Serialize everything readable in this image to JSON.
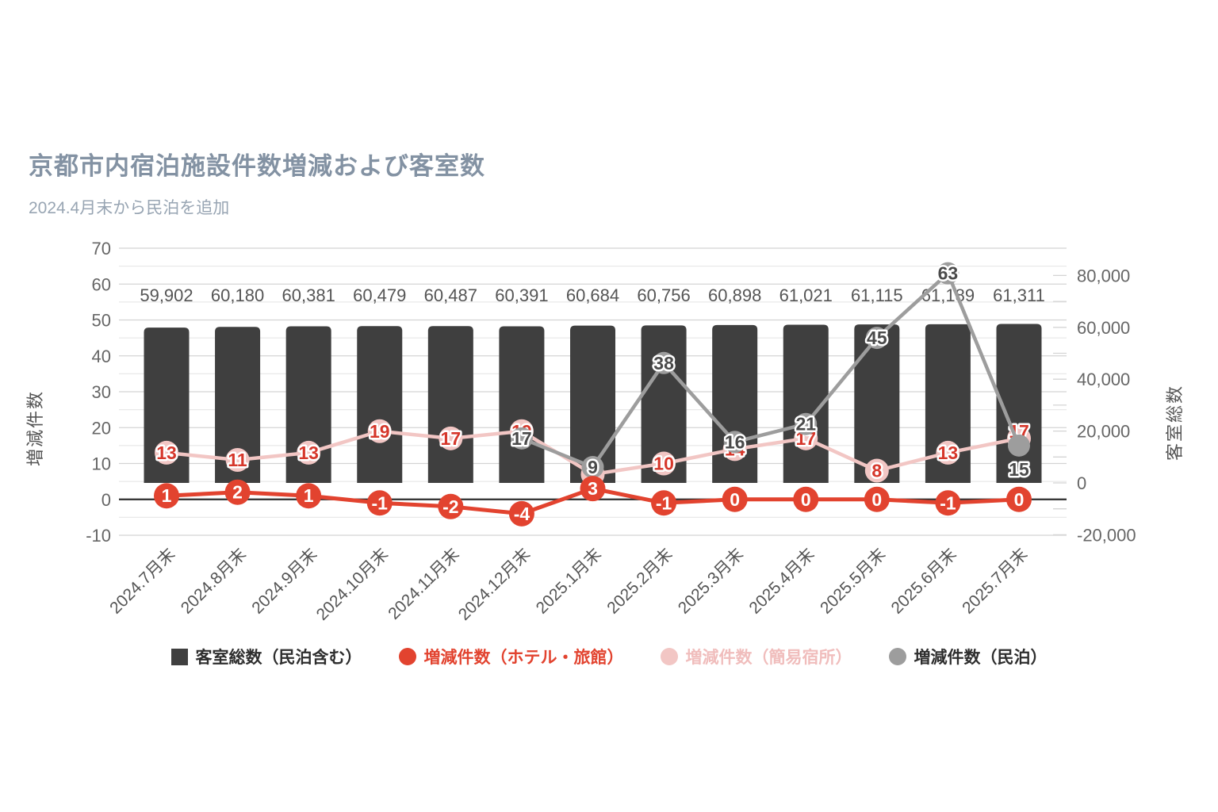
{
  "header": {
    "title": "京都市内宿泊施設件数増減および客室数",
    "subtitle": "2024.4月末から民泊を追加"
  },
  "colors": {
    "bar": "#3f3f3f",
    "red": "#e2432f",
    "pink": "#f2c6c4",
    "gray": "#9d9d9d",
    "grid_major": "#d4d4d4",
    "grid_minor": "#e9e9e9",
    "zero_line": "#2e2e2e",
    "axis_text": "#666666",
    "bar_label_text": "#555555"
  },
  "chart_data": {
    "type": "bar",
    "subtype": "combo-bar-line-dual-axis",
    "categories": [
      "2024.7月末",
      "2024.8月末",
      "2024.9月末",
      "2024.10月末",
      "2024.11月末",
      "2024.12月末",
      "2025.1月末",
      "2025.2月末",
      "2025.3月末",
      "2025.4月末",
      "2025.5月末",
      "2025.6月末",
      "2025.7月末"
    ],
    "series": [
      {
        "id": "total_rooms",
        "name": "客室総数（民泊含む）",
        "type": "bar",
        "axis": "right",
        "color": "#3f3f3f",
        "values": [
          59902,
          60180,
          60381,
          60479,
          60487,
          60391,
          60684,
          60756,
          60898,
          61021,
          61115,
          61189,
          61311
        ]
      },
      {
        "id": "simple_lodging",
        "name": "増減件数（簡易宿所）",
        "type": "line",
        "axis": "left",
        "color": "#f2c6c4",
        "label_color": "#d6372b",
        "values": [
          13,
          11,
          13,
          19,
          17,
          19,
          7,
          10,
          14,
          17,
          8,
          13,
          17
        ]
      },
      {
        "id": "minpaku",
        "name": "増減件数（民泊）",
        "type": "line",
        "axis": "left",
        "color": "#9d9d9d",
        "label_color": "#4a4a4a",
        "values": [
          null,
          null,
          null,
          null,
          null,
          17,
          9,
          38,
          16,
          21,
          45,
          63,
          15
        ]
      },
      {
        "id": "hotel_ryokan",
        "name": "増減件数（ホテル・旅館）",
        "type": "line",
        "axis": "left",
        "color": "#e2432f",
        "label_color": "#ffffff",
        "values": [
          1,
          2,
          1,
          -1,
          -2,
          -4,
          3,
          -1,
          0,
          0,
          0,
          -1,
          0
        ]
      }
    ],
    "left_axis": {
      "title": "増減件数",
      "min": -10,
      "max": 70,
      "major_ticks": [
        70,
        60,
        50,
        40,
        30,
        20,
        10,
        0,
        -10
      ],
      "minor_step": 5,
      "grid": true
    },
    "right_axis": {
      "title": "客室総数",
      "min": -20000,
      "max": 80000,
      "tick_labels": [
        "80,000",
        "60,000",
        "40,000",
        "20,000",
        "0",
        "-20,000"
      ],
      "tick_values": [
        80000,
        60000,
        40000,
        20000,
        0,
        -20000
      ],
      "minor_tick_step": 10000
    },
    "legend_position": "bottom"
  },
  "legend": {
    "items": [
      {
        "label": "客室総数（民泊含む）",
        "shape": "square",
        "color": "#3f3f3f",
        "text_color": "#2e2e2e"
      },
      {
        "label": "増減件数（ホテル・旅館）",
        "shape": "circle",
        "color": "#e2432f",
        "text_color": "#e2432f"
      },
      {
        "label": "増減件数（簡易宿所）",
        "shape": "circle",
        "color": "#f2c6c4",
        "text_color": "#f0bdbc"
      },
      {
        "label": "増減件数（民泊）",
        "shape": "circle",
        "color": "#9d9d9d",
        "text_color": "#2e2e2e"
      }
    ]
  }
}
